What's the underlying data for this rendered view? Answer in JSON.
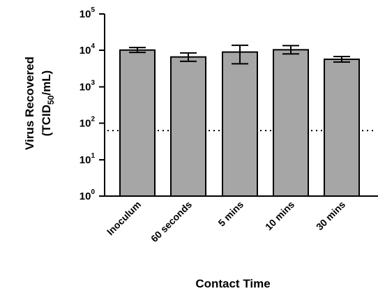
{
  "chart_data": {
    "type": "bar",
    "categories": [
      "Inoculum",
      "60 seconds",
      "5 mins",
      "10 mins",
      "30 mins"
    ],
    "values": [
      10200,
      6600,
      9000,
      10400,
      5700
    ],
    "error_low": [
      8800,
      5000,
      4300,
      8000,
      4800
    ],
    "error_high": [
      12000,
      8500,
      13800,
      13500,
      6800
    ],
    "y_scale": "log10",
    "ylim": [
      1,
      100000
    ],
    "y_ticks": [
      {
        "base": "10",
        "exp": "0"
      },
      {
        "base": "10",
        "exp": "1"
      },
      {
        "base": "10",
        "exp": "2"
      },
      {
        "base": "10",
        "exp": "3"
      },
      {
        "base": "10",
        "exp": "4"
      },
      {
        "base": "10",
        "exp": "5"
      }
    ],
    "ylabel_line1": "Virus Recovered",
    "ylabel_line2_prefix": "(TCID",
    "ylabel_line2_sub": "50",
    "ylabel_line2_suffix": "/mL)",
    "xlabel": "Contact Time",
    "detection_limit": 63,
    "grid": false,
    "legend": "none",
    "colors": {
      "bar": "#a6a6a6",
      "edge": "#000000"
    }
  }
}
